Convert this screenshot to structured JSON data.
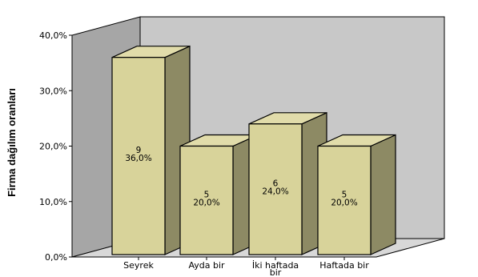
{
  "chart_data": {
    "type": "bar",
    "view": "3d",
    "title": "",
    "xlabel": "",
    "ylabel": "Firma dağılım oranları",
    "ylim": [
      0,
      40
    ],
    "yticks": [
      "0,0%",
      "10,0%",
      "20,0%",
      "30,0%",
      "40,0%"
    ],
    "grid": false,
    "categories": [
      "Seyrek",
      "Ayda bir",
      "İki haftada bir",
      "Haftada bir"
    ],
    "category_label_lines": [
      [
        "Seyrek"
      ],
      [
        "Ayda bir"
      ],
      [
        "İki haftada",
        "bir"
      ],
      [
        "Haftada bir"
      ]
    ],
    "series": [
      {
        "values": [
          36.0,
          20.0,
          24.0,
          20.0
        ],
        "counts": [
          9,
          5,
          6,
          5
        ],
        "data_labels": [
          [
            "9",
            "36,0%"
          ],
          [
            "5",
            "20,0%"
          ],
          [
            "6",
            "24,0%"
          ],
          [
            "5",
            "20,0%"
          ]
        ]
      }
    ],
    "colors": {
      "bar_front": "#d8d39a",
      "bar_side": "#8d8a64",
      "bar_top": "#e1dcaa",
      "wall_back": "#c8c8c8",
      "wall_side": "#a6a6a6",
      "floor": "#d8d8d8"
    }
  }
}
